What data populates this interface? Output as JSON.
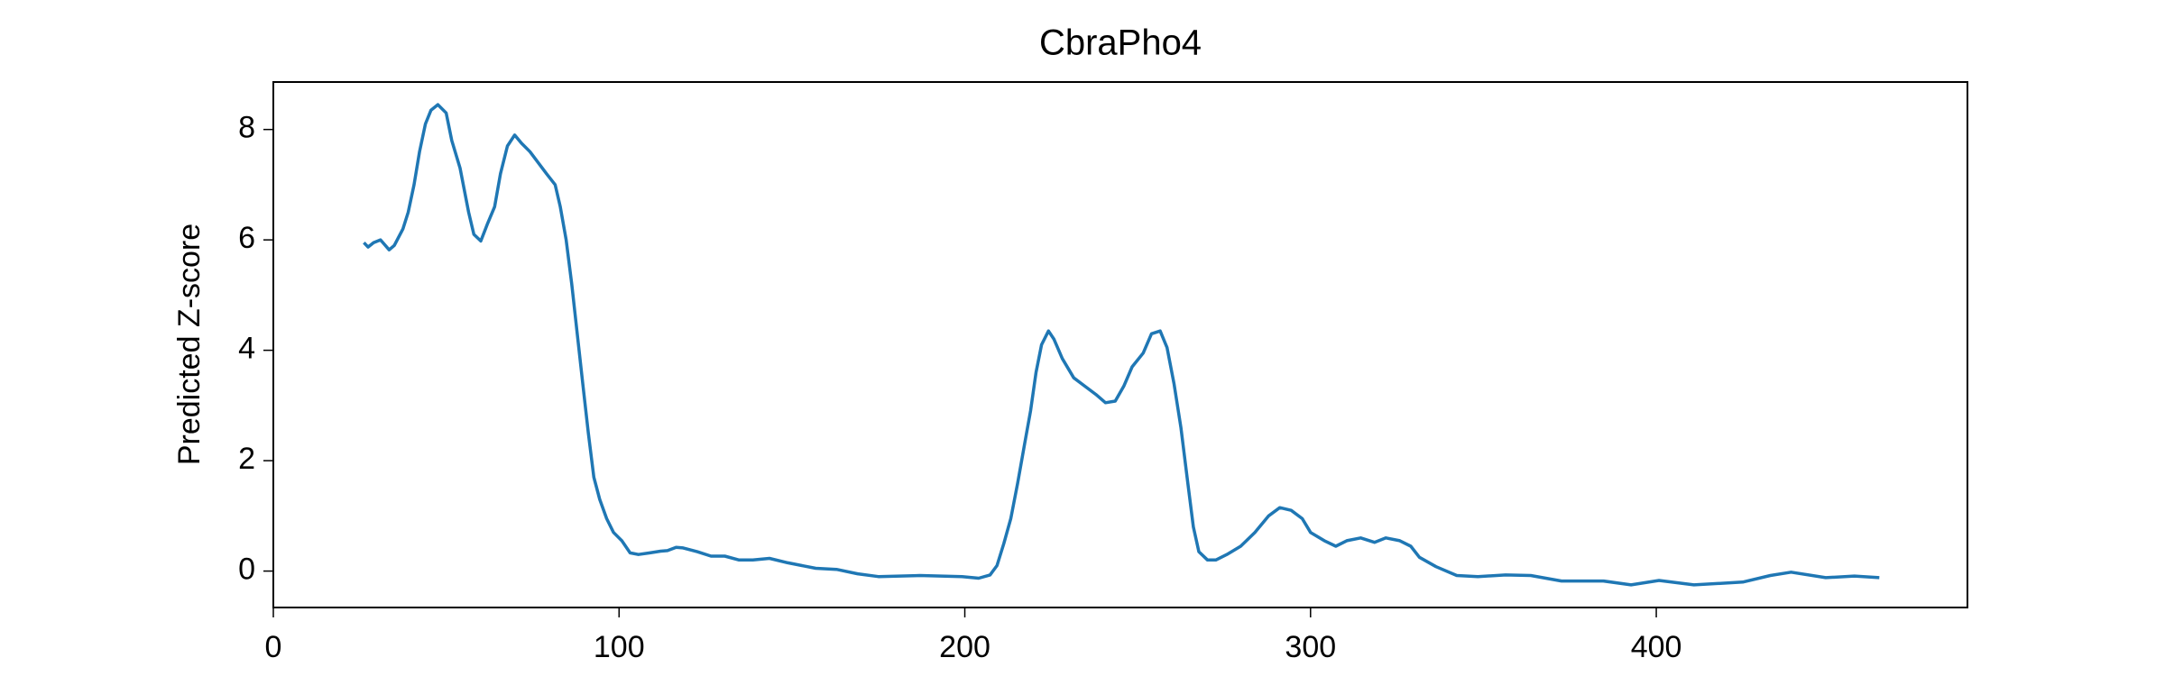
{
  "chart_data": {
    "type": "line",
    "title": "CbraPho4",
    "y_label": "Predicted Z-score",
    "x": [
      26.2,
      27.4,
      29,
      31,
      33.5,
      35,
      37.5,
      39,
      40.7,
      42.3,
      44,
      45.6,
      47.6,
      50,
      51.6,
      54,
      56.5,
      58,
      60,
      62,
      64,
      65.7,
      67.7,
      69.8,
      71.8,
      74.2,
      76.6,
      79,
      81.5,
      83,
      84.7,
      86.3,
      87.9,
      89.5,
      91.1,
      92.7,
      94.4,
      96.4,
      98.4,
      100.8,
      103.2,
      105.6,
      108.9,
      112,
      114,
      116.5,
      118.5,
      122.6,
      126.6,
      130.6,
      134.7,
      138.7,
      143.5,
      148.8,
      156.9,
      162.9,
      169,
      175,
      187,
      199.2,
      204,
      207.3,
      209.3,
      211.3,
      213.3,
      215.3,
      217.3,
      219,
      220.6,
      222.2,
      224.2,
      225.8,
      228.2,
      231.5,
      234.7,
      237.9,
      240.7,
      243.5,
      246,
      248.4,
      251.6,
      254,
      256.5,
      258.5,
      260.5,
      262.5,
      264.5,
      266.1,
      267.7,
      270.2,
      272.6,
      275.8,
      279.8,
      283.9,
      287.9,
      291.1,
      294.4,
      297.6,
      300,
      304,
      307.3,
      310.5,
      314.5,
      318.5,
      321.8,
      325.8,
      329,
      331.5,
      336.3,
      342.3,
      348.4,
      356.4,
      363.7,
      372.6,
      384.7,
      392.7,
      400.8,
      410.9,
      425,
      433,
      439,
      449,
      457.3,
      464.5
    ],
    "values": [
      5.95,
      5.87,
      5.95,
      6.0,
      5.82,
      5.9,
      6.2,
      6.5,
      7.0,
      7.6,
      8.1,
      8.35,
      8.45,
      8.3,
      7.8,
      7.3,
      6.5,
      6.1,
      5.98,
      6.3,
      6.6,
      7.2,
      7.7,
      7.9,
      7.75,
      7.6,
      7.4,
      7.2,
      7.0,
      6.6,
      6.0,
      5.2,
      4.3,
      3.4,
      2.5,
      1.7,
      1.3,
      0.95,
      0.7,
      0.55,
      0.33,
      0.3,
      0.33,
      0.36,
      0.37,
      0.43,
      0.42,
      0.35,
      0.27,
      0.27,
      0.2,
      0.2,
      0.23,
      0.15,
      0.05,
      0.03,
      -0.05,
      -0.1,
      -0.08,
      -0.1,
      -0.13,
      -0.07,
      0.1,
      0.5,
      0.95,
      1.6,
      2.3,
      2.9,
      3.6,
      4.1,
      4.35,
      4.2,
      3.85,
      3.5,
      3.35,
      3.2,
      3.05,
      3.08,
      3.35,
      3.7,
      3.95,
      4.3,
      4.35,
      4.05,
      3.4,
      2.6,
      1.6,
      0.8,
      0.35,
      0.2,
      0.2,
      0.3,
      0.45,
      0.7,
      1.0,
      1.15,
      1.1,
      0.95,
      0.7,
      0.55,
      0.45,
      0.55,
      0.6,
      0.52,
      0.6,
      0.55,
      0.45,
      0.25,
      0.08,
      -0.08,
      -0.1,
      -0.07,
      -0.08,
      -0.18,
      -0.18,
      -0.25,
      -0.17,
      -0.25,
      -0.2,
      -0.08,
      -0.02,
      -0.12,
      -0.09,
      -0.12
    ],
    "color": "#1f77b4",
    "xlim": [
      0,
      490
    ],
    "ylim": [
      -0.66,
      8.86
    ],
    "xticks": [
      0,
      100,
      200,
      300,
      400
    ],
    "yticks": [
      0,
      2,
      4,
      6,
      8
    ]
  }
}
